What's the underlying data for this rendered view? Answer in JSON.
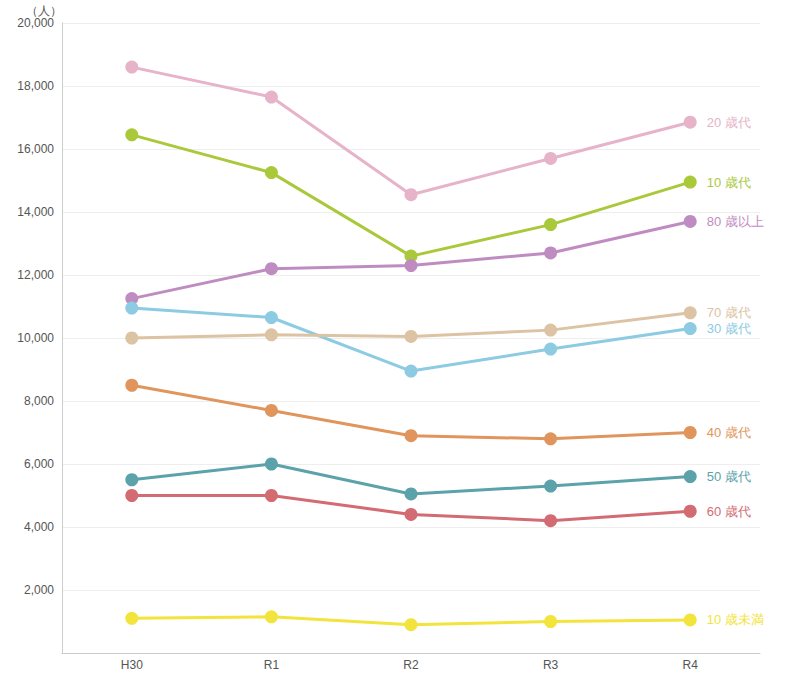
{
  "chart_data": {
    "type": "line",
    "y_label": "（人）",
    "categories": [
      "H30",
      "R1",
      "R2",
      "R3",
      "R4"
    ],
    "ylim": [
      0,
      20000
    ],
    "yticks": [
      {
        "value": 2000,
        "label": "2,000"
      },
      {
        "value": 4000,
        "label": "4,000"
      },
      {
        "value": 6000,
        "label": "6,000"
      },
      {
        "value": 8000,
        "label": "8,000"
      },
      {
        "value": 10000,
        "label": "10,000"
      },
      {
        "value": 12000,
        "label": "12,000"
      },
      {
        "value": 14000,
        "label": "14,000"
      },
      {
        "value": 16000,
        "label": "16,000"
      },
      {
        "value": 18000,
        "label": "18,000"
      },
      {
        "value": 20000,
        "label": "20,000"
      }
    ],
    "grid": true,
    "marker": "circle",
    "series": [
      {
        "name": "20 歳代",
        "color": "#e6b3c9",
        "values": [
          18600,
          17650,
          14550,
          15700,
          16850
        ]
      },
      {
        "name": "10 歳代",
        "color": "#a9c93a",
        "values": [
          16450,
          15250,
          12600,
          13600,
          14950
        ]
      },
      {
        "name": "80 歳以上",
        "color": "#bf8cc2",
        "values": [
          11250,
          12200,
          12300,
          12700,
          13700
        ]
      },
      {
        "name": "30 歳代",
        "color": "#8ccbe2",
        "values": [
          10950,
          10650,
          8950,
          9650,
          10300
        ]
      },
      {
        "name": "70 歳代",
        "color": "#dcc3a3",
        "values": [
          10000,
          10100,
          10050,
          10250,
          10800
        ]
      },
      {
        "name": "40 歳代",
        "color": "#df955c",
        "values": [
          8500,
          7700,
          6900,
          6800,
          7000
        ]
      },
      {
        "name": "50 歳代",
        "color": "#5ba2aa",
        "values": [
          5500,
          6000,
          5050,
          5300,
          5600
        ]
      },
      {
        "name": "60 歳代",
        "color": "#d36b72",
        "values": [
          5000,
          5000,
          4400,
          4200,
          4500
        ]
      },
      {
        "name": "10 歳未満",
        "color": "#f2e43c",
        "values": [
          1100,
          1150,
          900,
          1000,
          1050
        ]
      }
    ]
  }
}
